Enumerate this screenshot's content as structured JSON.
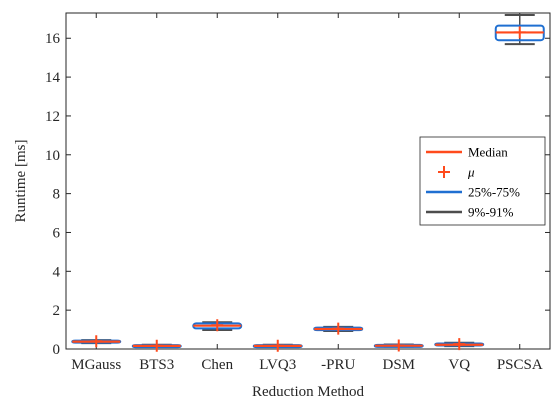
{
  "chart_data": {
    "type": "box",
    "xlabel": "Reduction Method",
    "ylabel": "Runtime [ms]",
    "ylim": [
      0,
      17.3
    ],
    "yticks": [
      0,
      2,
      4,
      6,
      8,
      10,
      12,
      14,
      16
    ],
    "categories": [
      "MGauss",
      "BTS3",
      "Chen",
      "LVQ3",
      "-PRU",
      "DSM",
      "VQ",
      "PSCSA"
    ],
    "boxes": [
      {
        "median": 0.38,
        "mean": 0.4,
        "q1": 0.33,
        "q3": 0.43,
        "p9": 0.3,
        "p91": 0.46
      },
      {
        "median": 0.16,
        "mean": 0.17,
        "q1": 0.13,
        "q3": 0.2,
        "p9": 0.11,
        "p91": 0.22
      },
      {
        "median": 1.2,
        "mean": 1.22,
        "q1": 1.06,
        "q3": 1.32,
        "p9": 0.98,
        "p91": 1.38
      },
      {
        "median": 0.16,
        "mean": 0.17,
        "q1": 0.13,
        "q3": 0.2,
        "p9": 0.11,
        "p91": 0.22
      },
      {
        "median": 1.03,
        "mean": 1.05,
        "q1": 0.97,
        "q3": 1.1,
        "p9": 0.93,
        "p91": 1.14
      },
      {
        "median": 0.17,
        "mean": 0.18,
        "q1": 0.14,
        "q3": 0.21,
        "p9": 0.12,
        "p91": 0.23
      },
      {
        "median": 0.22,
        "mean": 0.25,
        "q1": 0.18,
        "q3": 0.28,
        "p9": 0.15,
        "p91": 0.32
      },
      {
        "median": 16.3,
        "mean": 16.3,
        "q1": 15.9,
        "q3": 16.65,
        "p9": 15.7,
        "p91": 17.2
      }
    ],
    "legend": [
      {
        "label": "Median",
        "kind": "line",
        "color": "#ff4a1c"
      },
      {
        "label": "μ",
        "kind": "plus",
        "color": "#ff4a1c"
      },
      {
        "label": "25%-75%",
        "kind": "line",
        "color": "#1f6fd1"
      },
      {
        "label": "9%-91%",
        "kind": "line",
        "color": "#4d4d4d"
      }
    ],
    "legend_position": "right",
    "grid": false
  }
}
